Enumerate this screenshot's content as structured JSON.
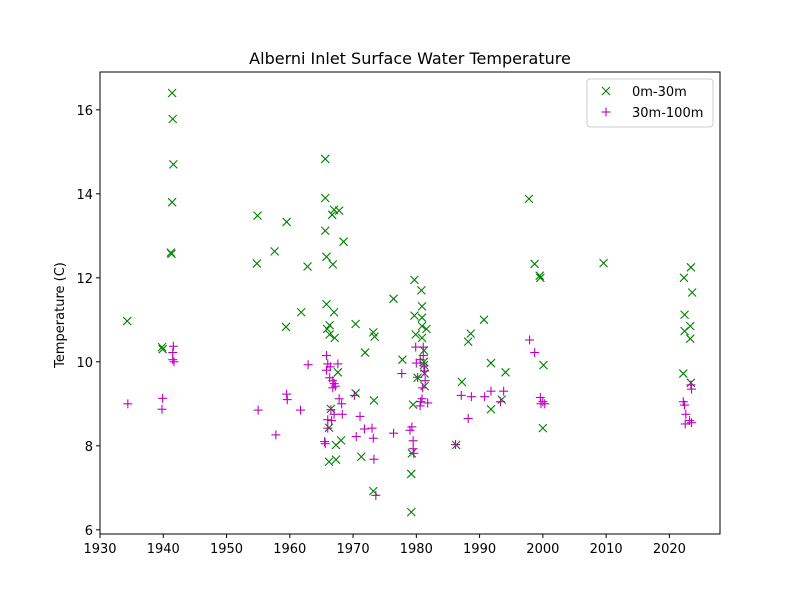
{
  "chart_data": {
    "type": "scatter",
    "title": "Alberni Inlet Surface Water Temperature",
    "xlabel": "",
    "ylabel": "Temperature (C)",
    "xlim": [
      1930,
      2028
    ],
    "ylim": [
      5.9,
      16.9
    ],
    "xticks": [
      1930,
      1940,
      1950,
      1960,
      1970,
      1980,
      1990,
      2000,
      2010,
      2020
    ],
    "yticks": [
      6,
      8,
      10,
      12,
      14,
      16
    ],
    "grid": false,
    "legend_position": "top-right",
    "series": [
      {
        "name": "0m-30m",
        "marker": "x",
        "color": "#008000",
        "points": [
          [
            1934.3,
            10.97
          ],
          [
            1939.8,
            10.35
          ],
          [
            1939.9,
            10.3
          ],
          [
            1941.4,
            16.4
          ],
          [
            1941.5,
            15.78
          ],
          [
            1941.6,
            14.7
          ],
          [
            1941.4,
            13.8
          ],
          [
            1941.2,
            12.6
          ],
          [
            1941.3,
            12.57
          ],
          [
            1954.9,
            13.48
          ],
          [
            1954.8,
            12.34
          ],
          [
            1957.6,
            12.63
          ],
          [
            1959.5,
            13.33
          ],
          [
            1959.4,
            10.83
          ],
          [
            1961.8,
            11.18
          ],
          [
            1962.8,
            12.27
          ],
          [
            1965.6,
            14.83
          ],
          [
            1965.6,
            13.9
          ],
          [
            1965.6,
            13.12
          ],
          [
            1965.8,
            12.5
          ],
          [
            1965.8,
            11.37
          ],
          [
            1965.9,
            10.78
          ],
          [
            1966.3,
            10.87
          ],
          [
            1966.3,
            10.65
          ],
          [
            1966.5,
            8.88
          ],
          [
            1966.2,
            8.43
          ],
          [
            1966.2,
            7.62
          ],
          [
            1966.7,
            13.5
          ],
          [
            1967.0,
            13.62
          ],
          [
            1966.8,
            12.32
          ],
          [
            1967.0,
            11.18
          ],
          [
            1967.1,
            10.57
          ],
          [
            1967.3,
            8.02
          ],
          [
            1967.3,
            7.67
          ],
          [
            1967.8,
            13.6
          ],
          [
            1967.6,
            9.75
          ],
          [
            1968.1,
            8.13
          ],
          [
            1968.5,
            12.86
          ],
          [
            1970.4,
            10.9
          ],
          [
            1970.4,
            9.25
          ],
          [
            1971.3,
            7.74
          ],
          [
            1971.9,
            10.22
          ],
          [
            1973.2,
            10.7
          ],
          [
            1973.4,
            10.6
          ],
          [
            1973.3,
            9.08
          ],
          [
            1973.2,
            6.92
          ],
          [
            1976.4,
            11.5
          ],
          [
            1977.8,
            10.05
          ],
          [
            1979.2,
            7.33
          ],
          [
            1979.2,
            6.42
          ],
          [
            1979.5,
            8.98
          ],
          [
            1979.7,
            11.95
          ],
          [
            1979.7,
            11.1
          ],
          [
            1979.9,
            10.65
          ],
          [
            1980.2,
            9.62
          ],
          [
            1980.8,
            11.7
          ],
          [
            1980.9,
            11.32
          ],
          [
            1980.9,
            11.05
          ],
          [
            1980.9,
            10.85
          ],
          [
            1980.9,
            10.57
          ],
          [
            1981.2,
            10.27
          ],
          [
            1981.2,
            10.0
          ],
          [
            1981.2,
            9.92
          ],
          [
            1981.3,
            9.72
          ],
          [
            1981.3,
            9.42
          ],
          [
            1981.6,
            10.78
          ],
          [
            1979.3,
            7.82
          ],
          [
            1986.3,
            8.02
          ],
          [
            1987.2,
            9.52
          ],
          [
            1988.2,
            10.48
          ],
          [
            1988.6,
            10.67
          ],
          [
            1990.7,
            11.0
          ],
          [
            1991.8,
            9.97
          ],
          [
            1991.8,
            8.87
          ],
          [
            1993.5,
            9.1
          ],
          [
            1994.1,
            9.75
          ],
          [
            1997.8,
            13.88
          ],
          [
            1998.7,
            12.33
          ],
          [
            1999.5,
            12.05
          ],
          [
            1999.6,
            12.0
          ],
          [
            2000.1,
            9.92
          ],
          [
            2000.0,
            8.42
          ],
          [
            2009.6,
            12.35
          ],
          [
            2022.3,
            12.0
          ],
          [
            2022.4,
            11.12
          ],
          [
            2022.4,
            10.73
          ],
          [
            2022.2,
            9.72
          ],
          [
            2023.4,
            12.25
          ],
          [
            2023.6,
            11.65
          ],
          [
            2023.3,
            10.85
          ],
          [
            2023.3,
            10.55
          ],
          [
            2023.4,
            9.5
          ]
        ]
      },
      {
        "name": "30m-100m",
        "marker": "+",
        "color": "#bf00bf",
        "points": [
          [
            1934.4,
            9.0
          ],
          [
            1939.9,
            9.13
          ],
          [
            1939.8,
            8.87
          ],
          [
            1941.6,
            10.37
          ],
          [
            1941.5,
            10.22
          ],
          [
            1941.5,
            10.05
          ],
          [
            1941.7,
            10.0
          ],
          [
            1955.0,
            8.85
          ],
          [
            1957.8,
            8.26
          ],
          [
            1959.5,
            9.23
          ],
          [
            1959.6,
            9.1
          ],
          [
            1961.7,
            8.85
          ],
          [
            1962.9,
            9.93
          ],
          [
            1965.5,
            8.1
          ],
          [
            1965.6,
            8.05
          ],
          [
            1965.8,
            10.15
          ],
          [
            1966.0,
            9.95
          ],
          [
            1965.8,
            9.8
          ],
          [
            1966.0,
            8.62
          ],
          [
            1966.0,
            8.42
          ],
          [
            1966.4,
            9.88
          ],
          [
            1966.3,
            9.62
          ],
          [
            1966.5,
            8.86
          ],
          [
            1966.6,
            8.6
          ],
          [
            1966.8,
            9.55
          ],
          [
            1966.8,
            9.38
          ],
          [
            1967.0,
            9.48
          ],
          [
            1967.2,
            9.42
          ],
          [
            1967.0,
            8.75
          ],
          [
            1967.6,
            9.95
          ],
          [
            1967.8,
            9.12
          ],
          [
            1968.2,
            9.0
          ],
          [
            1968.3,
            8.75
          ],
          [
            1970.2,
            9.2
          ],
          [
            1970.5,
            8.22
          ],
          [
            1971.1,
            8.7
          ],
          [
            1971.8,
            8.4
          ],
          [
            1973.0,
            8.42
          ],
          [
            1973.2,
            8.18
          ],
          [
            1973.3,
            7.68
          ],
          [
            1973.6,
            6.82
          ],
          [
            1976.4,
            8.3
          ],
          [
            1977.7,
            9.72
          ],
          [
            1979.0,
            8.37
          ],
          [
            1979.3,
            8.45
          ],
          [
            1979.5,
            8.12
          ],
          [
            1979.5,
            7.93
          ],
          [
            1979.6,
            7.82
          ],
          [
            1979.9,
            10.35
          ],
          [
            1980.0,
            9.97
          ],
          [
            1980.2,
            9.63
          ],
          [
            1980.6,
            10.05
          ],
          [
            1980.7,
            9.05
          ],
          [
            1980.6,
            8.95
          ],
          [
            1980.9,
            9.12
          ],
          [
            1981.1,
            10.35
          ],
          [
            1981.1,
            10.15
          ],
          [
            1981.2,
            9.9
          ],
          [
            1981.3,
            9.78
          ],
          [
            1981.4,
            9.55
          ],
          [
            1981.0,
            9.38
          ],
          [
            1981.8,
            9.02
          ],
          [
            1986.2,
            8.03
          ],
          [
            1987.1,
            9.2
          ],
          [
            1988.2,
            8.65
          ],
          [
            1988.7,
            9.17
          ],
          [
            1990.8,
            9.17
          ],
          [
            1991.8,
            9.3
          ],
          [
            1993.3,
            9.05
          ],
          [
            1993.8,
            9.3
          ],
          [
            1997.9,
            10.52
          ],
          [
            1998.7,
            10.22
          ],
          [
            1999.6,
            9.15
          ],
          [
            1999.7,
            9.0
          ],
          [
            2000.0,
            9.05
          ],
          [
            2000.3,
            9.0
          ],
          [
            2022.2,
            9.05
          ],
          [
            2022.4,
            8.97
          ],
          [
            2022.6,
            8.75
          ],
          [
            2022.5,
            8.52
          ],
          [
            2023.4,
            9.45
          ],
          [
            2023.5,
            9.35
          ],
          [
            2023.2,
            8.6
          ],
          [
            2023.5,
            8.55
          ]
        ]
      }
    ]
  }
}
